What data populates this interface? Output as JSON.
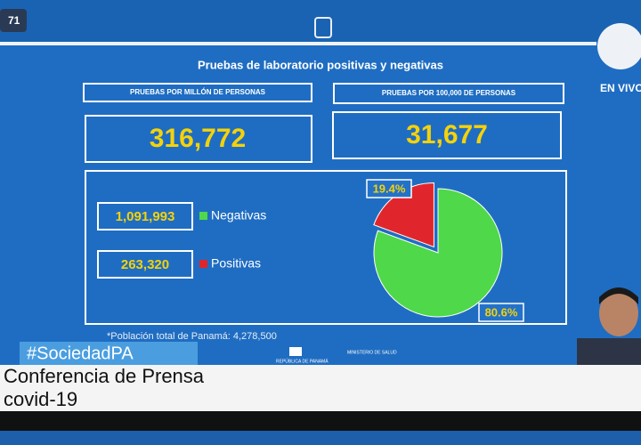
{
  "badge": "71",
  "live": "EN VIVO",
  "chart_data": {
    "type": "pie",
    "title": "Pruebas de laboratorio  positivas y negativas",
    "categories": [
      "Negativas",
      "Positivas"
    ],
    "values": [
      80.6,
      19.4
    ],
    "value_labels": [
      "80.6%",
      "19.4%"
    ],
    "colors": [
      "#4fd84a",
      "#e0262c"
    ],
    "counts": [
      "1,091,993",
      "263,320"
    ]
  },
  "stats": [
    {
      "label": "PRUEBAS POR MILLÓN DE PERSONAS",
      "value": "316,772"
    },
    {
      "label": "PRUEBAS POR 100,000 DE PERSONAS",
      "value": "31,677"
    }
  ],
  "footnote": "*Población total de Panamá: 4,278,500",
  "logos": [
    "REPÚBLICA DE PANAMÁ",
    "MINISTERIO DE SALUD"
  ],
  "overlay": {
    "hashtag": "#SociedadPA",
    "headline": "Conferencia de Prensa",
    "subline": "covid-19"
  }
}
